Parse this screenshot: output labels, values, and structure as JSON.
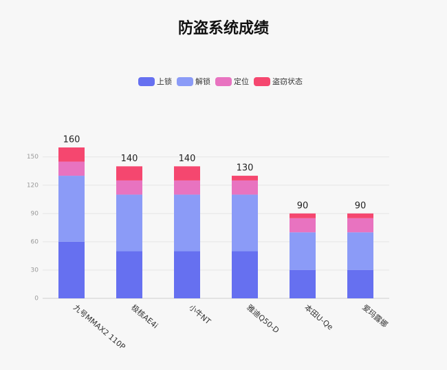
{
  "chart_data": {
    "type": "stacked_bar",
    "title": "防盗系统成绩",
    "categories": [
      "九号MMAX2 110P",
      "极核AE4i",
      "小牛NT",
      "雅迪Q50-D",
      "本田U-Qe",
      "爱玛露娜"
    ],
    "series": [
      {
        "name": "上锁",
        "color": "#6670f0",
        "values": [
          60,
          50,
          50,
          50,
          30,
          30
        ]
      },
      {
        "name": "解锁",
        "color": "#8b9bf7",
        "values": [
          70,
          60,
          60,
          60,
          40,
          40
        ]
      },
      {
        "name": "定位",
        "color": "#e873c0",
        "values": [
          15,
          15,
          15,
          15,
          15,
          15
        ]
      },
      {
        "name": "盗窃状态",
        "color": "#f5476f",
        "values": [
          15,
          15,
          15,
          5,
          5,
          5
        ]
      }
    ],
    "totals": [
      160,
      140,
      140,
      130,
      90,
      90
    ],
    "ylim": [
      0,
      160
    ],
    "yticks": [
      0,
      30,
      60,
      90,
      120,
      150
    ],
    "grid": true,
    "legend": "top"
  }
}
